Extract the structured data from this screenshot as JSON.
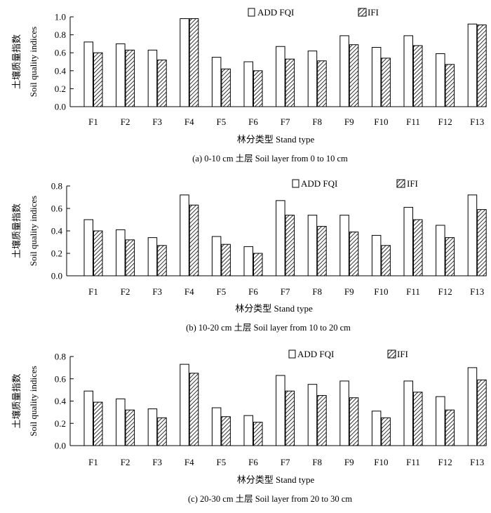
{
  "y_axis_label_cn": "土壤质量指数",
  "y_axis_label_en": "Soil quality indices",
  "x_axis_label": "林分类型 Stand type",
  "legend": {
    "add_fqi": "ADD FQI",
    "ifi": "IFI"
  },
  "colors": {
    "add_fqi_fill": "#ffffff",
    "ifi_hatch": "#000000",
    "axis": "#000000"
  },
  "chart_data": [
    {
      "type": "bar",
      "caption": "(a) 0-10 cm 土层 Soil layer from 0 to 10 cm",
      "xlabel": "林分类型 Stand type",
      "ylabel": "土壤质量指数 Soil quality indices",
      "ylim": [
        0,
        1.0
      ],
      "yticks": [
        "0.0",
        "0.2",
        "0.4",
        "0.6",
        "0.8",
        "1.0"
      ],
      "categories": [
        "F1",
        "F2",
        "F3",
        "F4",
        "F5",
        "F6",
        "F7",
        "F8",
        "F9",
        "F10",
        "F11",
        "F12",
        "F13"
      ],
      "series": [
        {
          "name": "ADD FQI",
          "values": [
            0.72,
            0.7,
            0.63,
            0.98,
            0.55,
            0.5,
            0.67,
            0.62,
            0.79,
            0.66,
            0.79,
            0.59,
            0.92
          ]
        },
        {
          "name": "IFI",
          "values": [
            0.6,
            0.63,
            0.52,
            0.98,
            0.42,
            0.4,
            0.53,
            0.51,
            0.69,
            0.54,
            0.68,
            0.47,
            0.91
          ]
        }
      ]
    },
    {
      "type": "bar",
      "caption": "(b) 10-20 cm 土层 Soil layer from 10 to 20 cm",
      "xlabel": "林分类型 Stand type",
      "ylabel": "土壤质量指数 Soil quality indices",
      "ylim": [
        0,
        0.8
      ],
      "yticks": [
        "0.0",
        "0.2",
        "0.4",
        "0.6",
        "0.8"
      ],
      "categories": [
        "F1",
        "F2",
        "F3",
        "F4",
        "F5",
        "F6",
        "F7",
        "F8",
        "F9",
        "F10",
        "F11",
        "F12",
        "F13"
      ],
      "series": [
        {
          "name": "ADD FQI",
          "values": [
            0.5,
            0.41,
            0.34,
            0.72,
            0.35,
            0.26,
            0.67,
            0.54,
            0.54,
            0.36,
            0.61,
            0.45,
            0.72
          ]
        },
        {
          "name": "IFI",
          "values": [
            0.4,
            0.32,
            0.27,
            0.63,
            0.28,
            0.2,
            0.54,
            0.44,
            0.39,
            0.27,
            0.5,
            0.34,
            0.59
          ]
        }
      ]
    },
    {
      "type": "bar",
      "caption": "(c) 20-30 cm 土层 Soil layer from 20 to 30 cm",
      "xlabel": "林分类型 Stand type",
      "ylabel": "土壤质量指数 Soil quality indices",
      "ylim": [
        0,
        0.8
      ],
      "yticks": [
        "0.0",
        "0.2",
        "0.4",
        "0.6",
        "0.8"
      ],
      "categories": [
        "F1",
        "F2",
        "F3",
        "F4",
        "F5",
        "F6",
        "F7",
        "F8",
        "F9",
        "F10",
        "F11",
        "F12",
        "F13"
      ],
      "series": [
        {
          "name": "ADD FQI",
          "values": [
            0.49,
            0.42,
            0.33,
            0.73,
            0.34,
            0.27,
            0.63,
            0.55,
            0.58,
            0.31,
            0.58,
            0.44,
            0.7
          ]
        },
        {
          "name": "IFI",
          "values": [
            0.39,
            0.32,
            0.25,
            0.65,
            0.26,
            0.21,
            0.49,
            0.45,
            0.43,
            0.25,
            0.48,
            0.32,
            0.59
          ]
        }
      ]
    }
  ]
}
